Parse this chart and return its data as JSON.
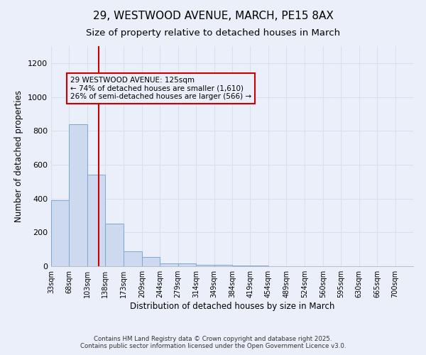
{
  "title": "29, WESTWOOD AVENUE, MARCH, PE15 8AX",
  "subtitle": "Size of property relative to detached houses in March",
  "xlabel": "Distribution of detached houses by size in March",
  "ylabel": "Number of detached properties",
  "bar_values": [
    390,
    840,
    540,
    250,
    90,
    55,
    18,
    15,
    10,
    10,
    5,
    3,
    2,
    1,
    1,
    1,
    0,
    0,
    0,
    0
  ],
  "bin_edges": [
    33,
    68,
    103,
    138,
    173,
    209,
    244,
    279,
    314,
    349,
    384,
    419,
    454,
    489,
    524,
    560,
    595,
    630,
    665,
    700,
    735
  ],
  "bar_color": "#cdd9ee",
  "bar_edge_color": "#7da8d4",
  "background_color": "#eaeff9",
  "grid_color": "#d8dff0",
  "ylim": [
    0,
    1300
  ],
  "yticks": [
    0,
    200,
    400,
    600,
    800,
    1000,
    1200
  ],
  "property_size": 125,
  "property_line_color": "#cc0000",
  "annotation_line1": "29 WESTWOOD AVENUE: 125sqm",
  "annotation_line2": "← 74% of detached houses are smaller (1,610)",
  "annotation_line3": "26% of semi-detached houses are larger (566) →",
  "annotation_box_color": "#cc0000",
  "footer_line1": "Contains HM Land Registry data © Crown copyright and database right 2025.",
  "footer_line2": "Contains public sector information licensed under the Open Government Licence v3.0.",
  "title_fontsize": 11,
  "subtitle_fontsize": 9.5,
  "tick_label_fontsize": 7,
  "ylabel_fontsize": 8.5,
  "xlabel_fontsize": 8.5,
  "annotation_fontsize": 7.5
}
